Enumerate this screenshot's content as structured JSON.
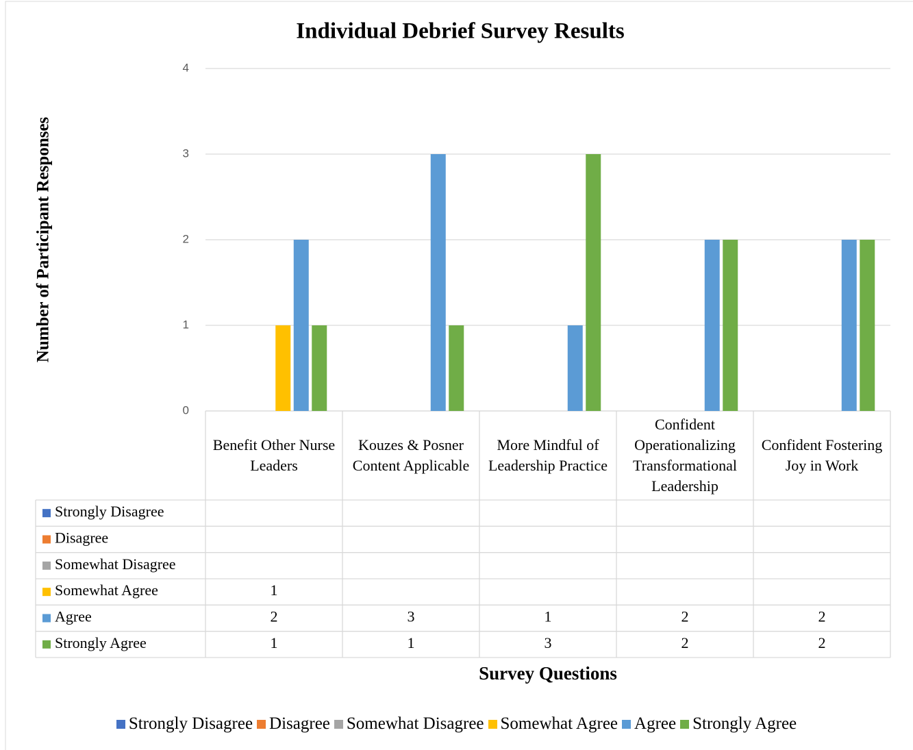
{
  "chart_data": {
    "type": "bar",
    "title": "Individual Debrief Survey Results",
    "y_label": "Number of Participant Responses",
    "x_label": "Survey Questions",
    "categories": [
      "Benefit Other Nurse Leaders",
      "Kouzes & Posner Content Applicable",
      "More Mindful of Leadership Practice",
      "Confident Operationalizing Transformational Leadership",
      "Confident Fostering Joy in Work"
    ],
    "series": [
      {
        "name": "Strongly Disagree",
        "color": "#4472c4",
        "values": [
          null,
          null,
          null,
          null,
          null
        ]
      },
      {
        "name": "Disagree",
        "color": "#ed7d31",
        "values": [
          null,
          null,
          null,
          null,
          null
        ]
      },
      {
        "name": "Somewhat Disagree",
        "color": "#a5a5a5",
        "values": [
          null,
          null,
          null,
          null,
          null
        ]
      },
      {
        "name": "Somewhat Agree",
        "color": "#ffc000",
        "values": [
          1,
          null,
          null,
          null,
          null
        ]
      },
      {
        "name": "Agree",
        "color": "#5b9bd5",
        "values": [
          2,
          3,
          1,
          2,
          2
        ]
      },
      {
        "name": "Strongly Agree",
        "color": "#70ad47",
        "values": [
          1,
          1,
          3,
          2,
          2
        ]
      }
    ],
    "ylim": [
      0,
      4
    ],
    "yticks": [
      0,
      1,
      2,
      3,
      4
    ],
    "grid": true,
    "legend": "bottom",
    "data_table": true
  }
}
